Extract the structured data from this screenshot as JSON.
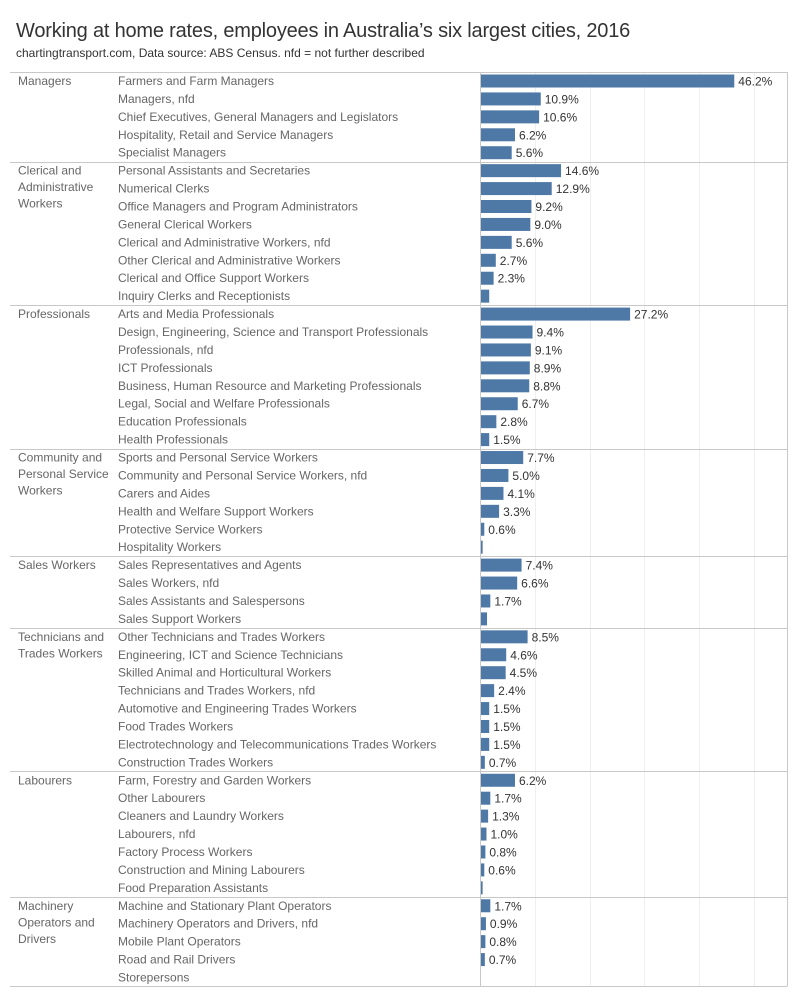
{
  "header": {
    "title": "Working at home rates, employees in Australia’s six largest cities, 2016",
    "subtitle": "chartingtransport.com, Data source:  ABS Census. nfd = not further described"
  },
  "chart_data": {
    "type": "bar",
    "orientation": "horizontal",
    "title": "Working at home rates, employees in Australia’s six largest cities, 2016",
    "subtitle": "chartingtransport.com, Data source:  ABS Census. nfd = not further described",
    "xlabel": "",
    "ylabel": "",
    "xlim": [
      0,
      56
    ],
    "gridlines_every": 10,
    "grid": true,
    "bar_color": "#4e79a7",
    "value_format": "percent_1dp",
    "groups": [
      {
        "name": "Managers",
        "name_lines": [
          "Managers"
        ],
        "items": [
          {
            "label": "Farmers and Farm Managers",
            "value": 46.2,
            "show_label": true
          },
          {
            "label": "Managers, nfd",
            "value": 10.9,
            "show_label": true
          },
          {
            "label": "Chief Executives, General Managers and Legislators",
            "value": 10.6,
            "show_label": true
          },
          {
            "label": "Hospitality, Retail and Service Managers",
            "value": 6.2,
            "show_label": true
          },
          {
            "label": "Specialist Managers",
            "value": 5.6,
            "show_label": true
          }
        ]
      },
      {
        "name": "Clerical and Administrative Workers",
        "name_lines": [
          "Clerical and",
          "Administrative",
          "Workers"
        ],
        "items": [
          {
            "label": "Personal Assistants and Secretaries",
            "value": 14.6,
            "show_label": true
          },
          {
            "label": "Numerical Clerks",
            "value": 12.9,
            "show_label": true
          },
          {
            "label": "Office Managers and Program Administrators",
            "value": 9.2,
            "show_label": true
          },
          {
            "label": "General Clerical Workers",
            "value": 9.0,
            "show_label": true
          },
          {
            "label": "Clerical and Administrative Workers, nfd",
            "value": 5.6,
            "show_label": true
          },
          {
            "label": "Other Clerical and Administrative Workers",
            "value": 2.7,
            "show_label": true
          },
          {
            "label": "Clerical and Office Support Workers",
            "value": 2.3,
            "show_label": true
          },
          {
            "label": "Inquiry Clerks and Receptionists",
            "value": 1.5,
            "show_label": false
          }
        ]
      },
      {
        "name": "Professionals",
        "name_lines": [
          "Professionals"
        ],
        "items": [
          {
            "label": "Arts and Media Professionals",
            "value": 27.2,
            "show_label": true
          },
          {
            "label": "Design, Engineering, Science and Transport Professionals",
            "value": 9.4,
            "show_label": true
          },
          {
            "label": "Professionals, nfd",
            "value": 9.1,
            "show_label": true
          },
          {
            "label": "ICT Professionals",
            "value": 8.9,
            "show_label": true
          },
          {
            "label": "Business, Human Resource and Marketing Professionals",
            "value": 8.8,
            "show_label": true
          },
          {
            "label": "Legal, Social and Welfare Professionals",
            "value": 6.7,
            "show_label": true
          },
          {
            "label": "Education Professionals",
            "value": 2.8,
            "show_label": true
          },
          {
            "label": "Health Professionals",
            "value": 1.5,
            "show_label": true
          }
        ]
      },
      {
        "name": "Community and Personal Service Workers",
        "name_lines": [
          "Community and",
          "Personal Service",
          "Workers"
        ],
        "items": [
          {
            "label": "Sports and Personal Service Workers",
            "value": 7.7,
            "show_label": true
          },
          {
            "label": "Community and Personal Service Workers, nfd",
            "value": 5.0,
            "show_label": true
          },
          {
            "label": "Carers and Aides",
            "value": 4.1,
            "show_label": true
          },
          {
            "label": "Health and Welfare Support Workers",
            "value": 3.3,
            "show_label": true
          },
          {
            "label": "Protective Service Workers",
            "value": 0.6,
            "show_label": true
          },
          {
            "label": "Hospitality Workers",
            "value": 0.3,
            "show_label": false
          }
        ]
      },
      {
        "name": "Sales Workers",
        "name_lines": [
          "Sales Workers"
        ],
        "items": [
          {
            "label": "Sales Representatives and Agents",
            "value": 7.4,
            "show_label": true
          },
          {
            "label": "Sales Workers, nfd",
            "value": 6.6,
            "show_label": true
          },
          {
            "label": "Sales Assistants and Salespersons",
            "value": 1.7,
            "show_label": true
          },
          {
            "label": "Sales Support Workers",
            "value": 1.1,
            "show_label": false
          }
        ]
      },
      {
        "name": "Technicians and Trades Workers",
        "name_lines": [
          "Technicians and",
          "Trades Workers"
        ],
        "items": [
          {
            "label": "Other Technicians and Trades Workers",
            "value": 8.5,
            "show_label": true
          },
          {
            "label": "Engineering, ICT and Science Technicians",
            "value": 4.6,
            "show_label": true
          },
          {
            "label": "Skilled Animal and Horticultural Workers",
            "value": 4.5,
            "show_label": true
          },
          {
            "label": "Technicians and Trades Workers, nfd",
            "value": 2.4,
            "show_label": true
          },
          {
            "label": "Automotive and Engineering Trades Workers",
            "value": 1.5,
            "show_label": true
          },
          {
            "label": "Food Trades Workers",
            "value": 1.5,
            "show_label": true
          },
          {
            "label": "Electrotechnology and Telecommunications Trades Workers",
            "value": 1.5,
            "show_label": true
          },
          {
            "label": "Construction Trades Workers",
            "value": 0.7,
            "show_label": true
          }
        ]
      },
      {
        "name": "Labourers",
        "name_lines": [
          "Labourers"
        ],
        "items": [
          {
            "label": "Farm, Forestry and Garden Workers",
            "value": 6.2,
            "show_label": true
          },
          {
            "label": "Other Labourers",
            "value": 1.7,
            "show_label": true
          },
          {
            "label": "Cleaners and Laundry Workers",
            "value": 1.3,
            "show_label": true
          },
          {
            "label": "Labourers, nfd",
            "value": 1.0,
            "show_label": true
          },
          {
            "label": "Factory Process Workers",
            "value": 0.8,
            "show_label": true
          },
          {
            "label": "Construction and Mining Labourers",
            "value": 0.6,
            "show_label": true
          },
          {
            "label": "Food Preparation Assistants",
            "value": 0.3,
            "show_label": false
          }
        ]
      },
      {
        "name": "Machinery Operators and Drivers",
        "name_lines": [
          "Machinery",
          "Operators and",
          "Drivers"
        ],
        "items": [
          {
            "label": "Machine and Stationary Plant Operators",
            "value": 1.7,
            "show_label": true
          },
          {
            "label": "Machinery Operators and Drivers, nfd",
            "value": 0.9,
            "show_label": true
          },
          {
            "label": "Mobile Plant Operators",
            "value": 0.8,
            "show_label": true
          },
          {
            "label": "Road and Rail Drivers",
            "value": 0.7,
            "show_label": true
          },
          {
            "label": "Storepersons",
            "value": 0.0,
            "show_label": false
          }
        ]
      }
    ]
  }
}
